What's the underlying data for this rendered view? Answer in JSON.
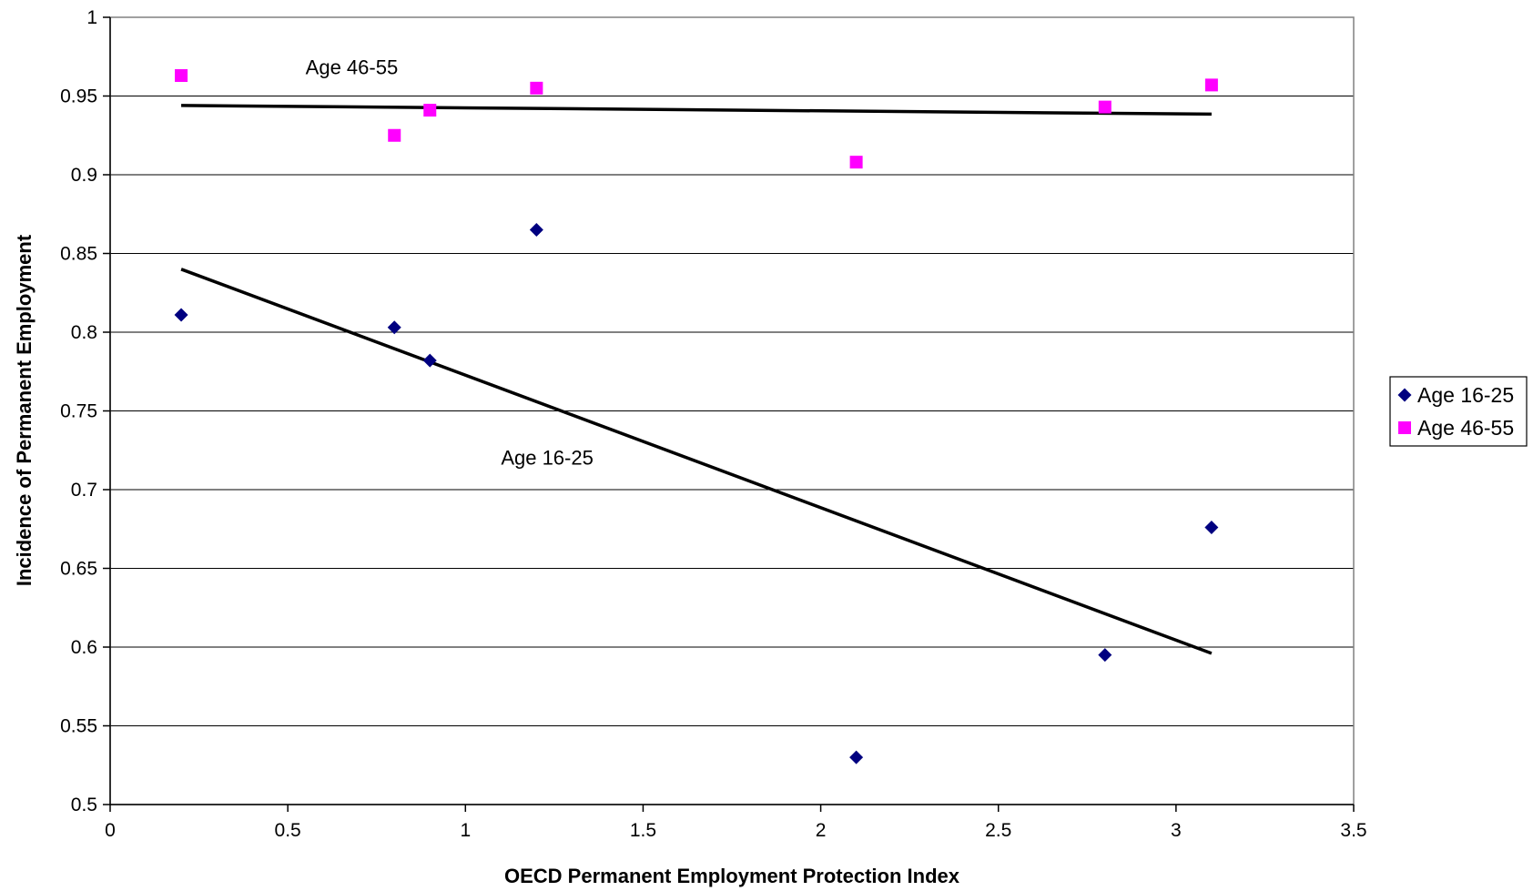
{
  "chart_data": {
    "type": "scatter",
    "title": "",
    "xlabel": "OECD Permanent Employment Protection Index",
    "ylabel": "Incidence of Permanent Employment",
    "xlim": [
      0,
      3.5
    ],
    "ylim": [
      0.5,
      1
    ],
    "x_ticks": [
      0,
      0.5,
      1,
      1.5,
      2,
      2.5,
      3,
      3.5
    ],
    "x_tick_labels": [
      "0",
      "0.5",
      "1",
      "1.5",
      "2",
      "2.5",
      "3",
      "3.5"
    ],
    "y_ticks": [
      0.5,
      0.55,
      0.6,
      0.65,
      0.7,
      0.75,
      0.8,
      0.85,
      0.9,
      0.95,
      1
    ],
    "y_tick_labels": [
      "0.5",
      "0.55",
      "0.6",
      "0.65",
      "0.7",
      "0.75",
      "0.8",
      "0.85",
      "0.9",
      "0.95",
      "1"
    ],
    "grid": "horizontal",
    "legend_position": "right",
    "series": [
      {
        "name": "Age 16-25",
        "marker": "diamond",
        "color": "#000080",
        "points": [
          {
            "x": 0.2,
            "y": 0.811
          },
          {
            "x": 0.8,
            "y": 0.803
          },
          {
            "x": 0.9,
            "y": 0.782
          },
          {
            "x": 1.2,
            "y": 0.865
          },
          {
            "x": 2.1,
            "y": 0.53
          },
          {
            "x": 2.8,
            "y": 0.595
          },
          {
            "x": 3.1,
            "y": 0.676
          }
        ],
        "trendline": {
          "x": [
            0.2,
            3.1
          ],
          "y": [
            0.84,
            0.596
          ]
        }
      },
      {
        "name": "Age 46-55",
        "marker": "square",
        "color": "#FF00FF",
        "points": [
          {
            "x": 0.2,
            "y": 0.963
          },
          {
            "x": 0.8,
            "y": 0.925
          },
          {
            "x": 0.9,
            "y": 0.941
          },
          {
            "x": 1.2,
            "y": 0.955
          },
          {
            "x": 2.1,
            "y": 0.908
          },
          {
            "x": 2.8,
            "y": 0.943
          },
          {
            "x": 3.1,
            "y": 0.957
          }
        ],
        "trendline": {
          "x": [
            0.2,
            3.1
          ],
          "y": [
            0.944,
            0.9385
          ]
        }
      }
    ],
    "annotations": [
      {
        "text": "Age 46-55",
        "x": 0.55,
        "y": 0.964
      },
      {
        "text": "Age 16-25",
        "x": 1.1,
        "y": 0.716
      }
    ]
  }
}
